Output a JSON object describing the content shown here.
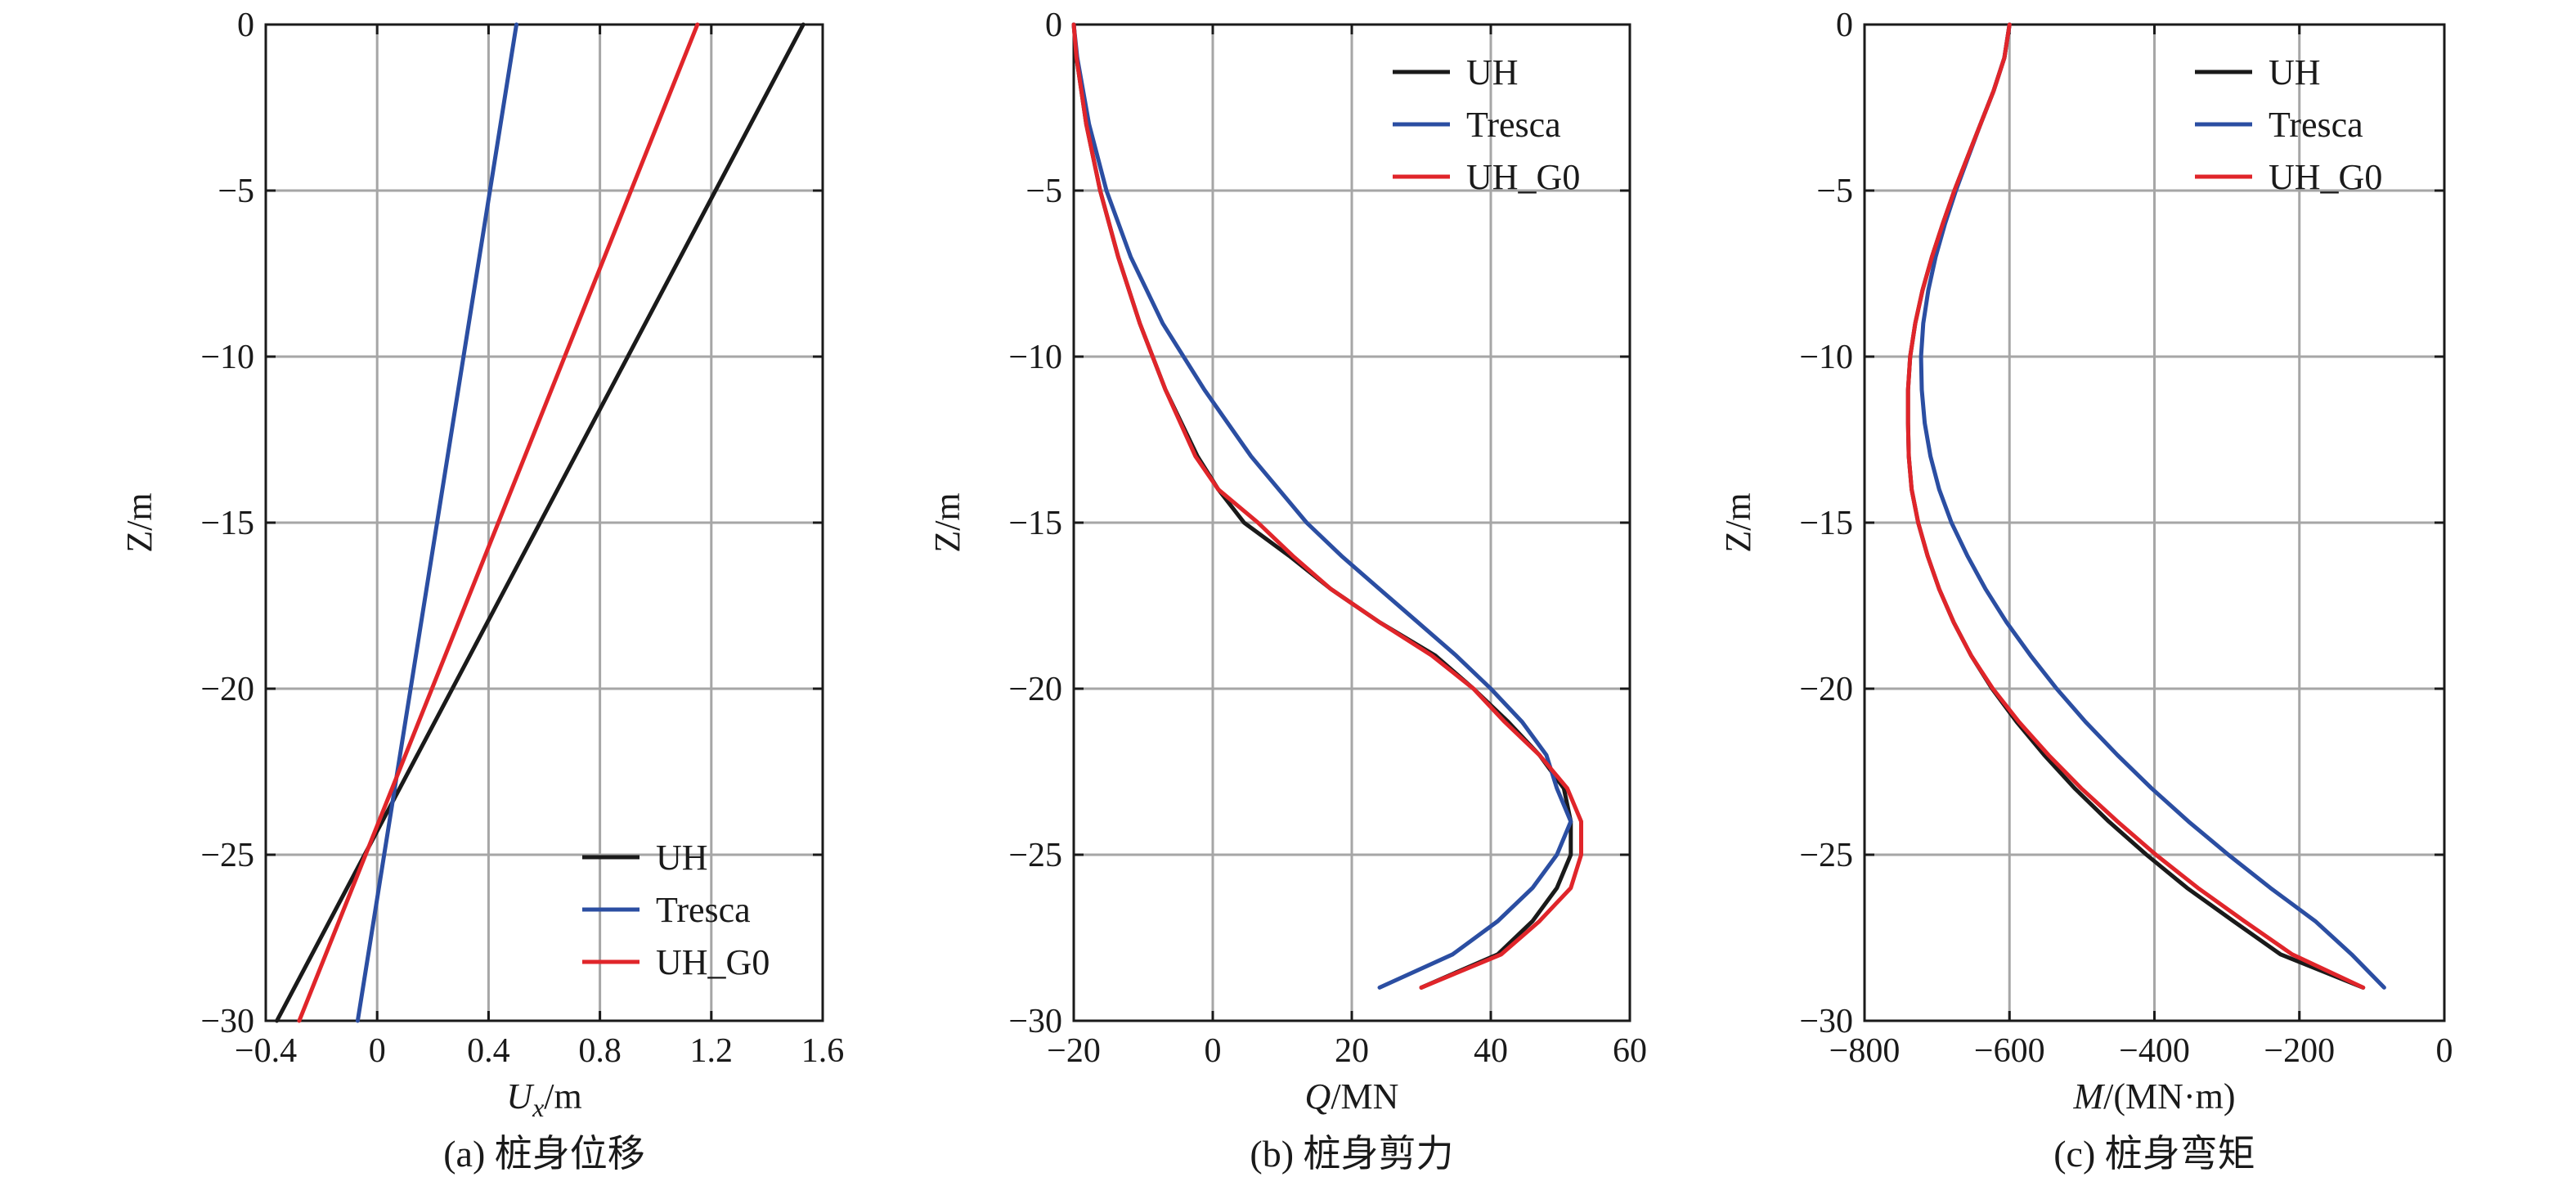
{
  "chart_data": [
    {
      "type": "line",
      "caption": "(a) 桩身位移",
      "xlabel_main": "U",
      "xlabel_sub": "x",
      "xlabel_unit": "/m",
      "ylabel": "Z/m",
      "xlim": [
        -0.4,
        1.6
      ],
      "ylim": [
        -30,
        0
      ],
      "xticks": [
        -0.4,
        0,
        0.4,
        0.8,
        1.2,
        1.6
      ],
      "xtick_labels": [
        "−0.4",
        "0",
        "0.4",
        "0.8",
        "1.2",
        "1.6"
      ],
      "yticks": [
        0,
        -5,
        -10,
        -15,
        -20,
        -25,
        -30
      ],
      "ytick_labels": [
        "0",
        "−5",
        "−10",
        "−15",
        "−20",
        "−25",
        "−30"
      ],
      "grid": true,
      "legend_position": "bottom-right",
      "series": [
        {
          "name": "UH",
          "color": "#1a1a1a",
          "z": [
            0,
            -30
          ],
          "x": [
            1.53,
            -0.36
          ]
        },
        {
          "name": "Tresca",
          "color": "#2b4ea2",
          "z": [
            0,
            -30
          ],
          "x": [
            0.5,
            -0.07
          ]
        },
        {
          "name": "UH_G0",
          "color": "#e0252a",
          "z": [
            0,
            -30
          ],
          "x": [
            1.15,
            -0.28
          ]
        }
      ]
    },
    {
      "type": "line",
      "caption": "(b) 桩身剪力",
      "xlabel_main": "Q",
      "xlabel_sub": "",
      "xlabel_unit": "/MN",
      "ylabel": "Z/m",
      "xlim": [
        -20,
        60
      ],
      "ylim": [
        -30,
        0
      ],
      "xticks": [
        -20,
        0,
        20,
        40,
        60
      ],
      "xtick_labels": [
        "−20",
        "0",
        "20",
        "40",
        "60"
      ],
      "yticks": [
        0,
        -5,
        -10,
        -15,
        -20,
        -25,
        -30
      ],
      "ytick_labels": [
        "0",
        "−5",
        "−10",
        "−15",
        "−20",
        "−25",
        "−30"
      ],
      "grid": true,
      "legend_position": "top-right",
      "series": [
        {
          "name": "UH",
          "color": "#1a1a1a",
          "z": [
            0,
            -1,
            -3,
            -5,
            -7,
            -9,
            -11,
            -13,
            -14,
            -15,
            -16,
            -17,
            -18,
            -19,
            -20,
            -21,
            -22,
            -23,
            -24,
            -25,
            -26,
            -27,
            -28,
            -29
          ],
          "x": [
            -20,
            -19.6,
            -18.2,
            -16.2,
            -13.6,
            -10.5,
            -6.8,
            -2.2,
            0.8,
            4.5,
            11,
            17,
            24,
            32,
            37.5,
            42.5,
            47,
            50.5,
            51.5,
            51.5,
            49.5,
            46,
            41,
            30
          ]
        },
        {
          "name": "Tresca",
          "color": "#2b4ea2",
          "z": [
            0,
            -1,
            -3,
            -5,
            -7,
            -9,
            -11,
            -13,
            -15,
            -16,
            -17,
            -18,
            -19,
            -20,
            -21,
            -22,
            -23,
            -24,
            -25,
            -26,
            -27,
            -28,
            -29
          ],
          "x": [
            -20,
            -19.5,
            -17.8,
            -15.3,
            -11.8,
            -7.2,
            -1.2,
            5.5,
            13.5,
            18.5,
            24,
            29.5,
            35,
            40,
            44.5,
            48,
            49.5,
            51.5,
            49.5,
            46,
            41,
            34.5,
            24
          ]
        },
        {
          "name": "UH_G0",
          "color": "#e0252a",
          "z": [
            0,
            -1,
            -3,
            -5,
            -7,
            -9,
            -11,
            -13,
            -14,
            -15,
            -16,
            -17,
            -18,
            -19,
            -20,
            -21,
            -22,
            -23,
            -24,
            -25,
            -26,
            -27,
            -28,
            -29
          ],
          "x": [
            -20,
            -19.6,
            -18.2,
            -16.2,
            -13.6,
            -10.5,
            -6.8,
            -2.5,
            0.8,
            6.5,
            11.5,
            17,
            24,
            31.5,
            37.5,
            42,
            47,
            51,
            53,
            53,
            51.5,
            47,
            41.5,
            30
          ]
        }
      ]
    },
    {
      "type": "line",
      "caption": "(c) 桩身弯矩",
      "xlabel_main": "M",
      "xlabel_sub": "",
      "xlabel_unit": "/(MN·m)",
      "ylabel": "Z/m",
      "xlim": [
        -800,
        0
      ],
      "ylim": [
        -30,
        0
      ],
      "xticks": [
        -800,
        -600,
        -400,
        -200,
        0
      ],
      "xtick_labels": [
        "−800",
        "−600",
        "−400",
        "−200",
        "0"
      ],
      "yticks": [
        0,
        -5,
        -10,
        -15,
        -20,
        -25,
        -30
      ],
      "ytick_labels": [
        "0",
        "−5",
        "−10",
        "−15",
        "−20",
        "−25",
        "−30"
      ],
      "grid": true,
      "legend_position": "top-right",
      "series": [
        {
          "name": "UH",
          "color": "#1a1a1a",
          "z": [
            0,
            -1,
            -2,
            -3,
            -4,
            -5,
            -6,
            -7,
            -8,
            -9,
            -10,
            -11,
            -12,
            -13,
            -14,
            -15,
            -16,
            -17,
            -18,
            -19,
            -20,
            -21,
            -22,
            -23,
            -24,
            -25,
            -26,
            -27,
            -28,
            -29
          ],
          "x": [
            -600,
            -607,
            -622,
            -640,
            -658,
            -676,
            -692,
            -707,
            -720,
            -730,
            -737,
            -740,
            -740,
            -739,
            -735,
            -726,
            -713,
            -697,
            -677,
            -653,
            -624,
            -590,
            -552,
            -510,
            -463,
            -411,
            -355,
            -291,
            -226,
            -112
          ]
        },
        {
          "name": "Tresca",
          "color": "#2b4ea2",
          "z": [
            0,
            -1,
            -2,
            -3,
            -4,
            -5,
            -6,
            -7,
            -8,
            -9,
            -10,
            -11,
            -12,
            -13,
            -14,
            -15,
            -16,
            -17,
            -18,
            -19,
            -20,
            -21,
            -22,
            -23,
            -24,
            -25,
            -26,
            -27,
            -28,
            -29
          ],
          "x": [
            -600,
            -607,
            -622,
            -640,
            -657,
            -674,
            -689,
            -702,
            -712,
            -719,
            -722,
            -721,
            -717,
            -709,
            -697,
            -680,
            -658,
            -633,
            -604,
            -571,
            -535,
            -495,
            -451,
            -404,
            -353,
            -298,
            -240,
            -178,
            -128,
            -83
          ]
        },
        {
          "name": "UH_G0",
          "color": "#e0252a",
          "z": [
            0,
            -1,
            -2,
            -3,
            -4,
            -5,
            -6,
            -7,
            -8,
            -9,
            -10,
            -11,
            -12,
            -13,
            -14,
            -15,
            -16,
            -17,
            -18,
            -19,
            -20,
            -21,
            -22,
            -23,
            -24,
            -25,
            -26,
            -27,
            -28,
            -29
          ],
          "x": [
            -600,
            -607,
            -622,
            -640,
            -658,
            -676,
            -692,
            -707,
            -720,
            -730,
            -737,
            -740,
            -740,
            -739,
            -735,
            -726,
            -713,
            -697,
            -677,
            -653,
            -623,
            -587,
            -546,
            -501,
            -451,
            -398,
            -340,
            -276,
            -210,
            -112
          ]
        }
      ]
    }
  ]
}
